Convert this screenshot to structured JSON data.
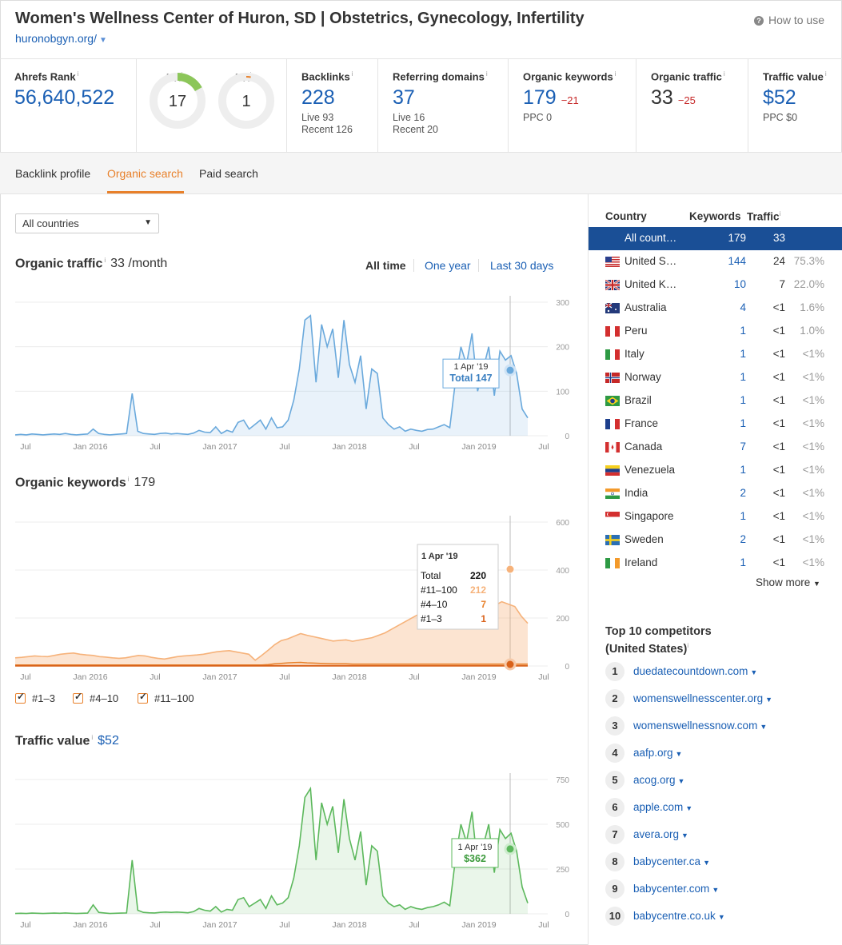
{
  "header": {
    "title": "Women's Wellness Center of Huron, SD | Obstetrics, Gynecology, Infertility",
    "url": "huronobgyn.org/",
    "how_to_use": "How to use"
  },
  "metrics": {
    "ahrefs_rank": {
      "label": "Ahrefs Rank",
      "value": "56,640,522"
    },
    "ur": {
      "label": "UR",
      "value": "17",
      "level": 17
    },
    "dr": {
      "label": "DR",
      "value": "1",
      "level": 1
    },
    "backlinks": {
      "label": "Backlinks",
      "value": "228",
      "live": "Live 93",
      "recent": "Recent 126"
    },
    "referring_domains": {
      "label": "Referring domains",
      "value": "37",
      "live": "Live 16",
      "recent": "Recent 20"
    },
    "organic_keywords": {
      "label": "Organic keywords",
      "value": "179",
      "delta": "−21",
      "ppc": "PPC 0"
    },
    "organic_traffic": {
      "label": "Organic traffic",
      "value": "33",
      "delta": "−25"
    },
    "traffic_value": {
      "label": "Traffic value",
      "value": "$52",
      "ppc": "PPC $0"
    }
  },
  "tabs": [
    "Backlink profile",
    "Organic search",
    "Paid search"
  ],
  "country_select": "All countries",
  "sections": {
    "organic_traffic": {
      "title": "Organic traffic",
      "value": "33 /month"
    },
    "organic_keywords": {
      "title": "Organic keywords",
      "value": "179"
    },
    "traffic_value": {
      "title": "Traffic value",
      "value": "$52"
    }
  },
  "ranges": [
    "All time",
    "One year",
    "Last 30 days"
  ],
  "tooltips": {
    "traffic": {
      "date": "1 Apr '19",
      "label": "Total 147"
    },
    "keywords": {
      "date": "1 Apr '19",
      "rows": [
        [
          "Total",
          "220"
        ],
        [
          "#11–100",
          "212"
        ],
        [
          "#4–10",
          "7"
        ],
        [
          "#1–3",
          "1"
        ]
      ]
    },
    "value": {
      "date": "1 Apr '19",
      "label": "$362"
    }
  },
  "legend": [
    "#1–3",
    "#4–10",
    "#11–100"
  ],
  "colors": {
    "accent": "#e8802a",
    "link": "#1a5fb4",
    "traffic": "#6aa9dc",
    "keywords": "#f6b27a",
    "value": "#5cb85c",
    "delta": "#c62828"
  },
  "chart_data": [
    {
      "type": "line",
      "title": "Organic traffic",
      "x_ticks": [
        "Jul",
        "Jan 2016",
        "Jul",
        "Jan 2017",
        "Jul",
        "Jan 2018",
        "Jul",
        "Jan 2019",
        "Jul"
      ],
      "y_ticks": [
        "300",
        "200",
        "100",
        "0"
      ],
      "ylim": [
        0,
        300
      ],
      "series": [
        {
          "values": [
            2,
            3,
            2,
            4,
            3,
            2,
            3,
            4,
            3,
            5,
            3,
            2,
            3,
            4,
            15,
            5,
            3,
            2,
            3,
            4,
            5,
            95,
            10,
            5,
            4,
            3,
            5,
            6,
            4,
            5,
            4,
            3,
            6,
            12,
            8,
            7,
            20,
            5,
            12,
            8,
            30,
            35,
            15,
            25,
            35,
            15,
            40,
            18,
            20,
            35,
            80,
            150,
            260,
            270,
            120,
            250,
            200,
            240,
            130,
            260,
            160,
            120,
            180,
            60,
            150,
            140,
            40,
            25,
            15,
            20,
            10,
            15,
            12,
            10,
            14,
            15,
            20,
            25,
            18,
            120,
            200,
            160,
            230,
            100,
            150,
            200,
            90,
            190,
            170,
            180,
            140,
            60,
            40
          ]
        }
      ],
      "highlight": {
        "x": "1 Apr '19",
        "y": 147
      }
    },
    {
      "type": "area",
      "title": "Organic keywords",
      "x_ticks": [
        "Jul",
        "Jan 2016",
        "Jul",
        "Jan 2017",
        "Jul",
        "Jan 2018",
        "Jul",
        "Jan 2019",
        "Jul"
      ],
      "y_ticks": [
        "600",
        "400",
        "200",
        "0"
      ],
      "ylim": [
        0,
        600
      ],
      "series": [
        {
          "name": "#11–100",
          "values": [
            30,
            32,
            35,
            38,
            36,
            35,
            40,
            45,
            48,
            50,
            45,
            42,
            40,
            35,
            33,
            30,
            28,
            30,
            35,
            40,
            38,
            32,
            28,
            25,
            30,
            35,
            38,
            40,
            42,
            45,
            50,
            55,
            58,
            60,
            55,
            50,
            45,
            20,
            40,
            60,
            80,
            95,
            100,
            110,
            120,
            115,
            110,
            105,
            100,
            95,
            98,
            100,
            95,
            100,
            105,
            110,
            120,
            130,
            145,
            160,
            175,
            190,
            205,
            212,
            260,
            300,
            350,
            380,
            410,
            430,
            380,
            300,
            240,
            230,
            245,
            260,
            250,
            240,
            200,
            170
          ]
        },
        {
          "name": "#4–10",
          "values": [
            3,
            3,
            3,
            3,
            3,
            3,
            3,
            3,
            3,
            3,
            3,
            3,
            3,
            3,
            3,
            3,
            3,
            3,
            3,
            3,
            3,
            3,
            3,
            3,
            3,
            3,
            3,
            3,
            3,
            3,
            3,
            3,
            3,
            3,
            3,
            3,
            3,
            3,
            3,
            5,
            8,
            10,
            12,
            13,
            14,
            12,
            11,
            10,
            9,
            8,
            8,
            8,
            7,
            7,
            7,
            7,
            7,
            7,
            7,
            7,
            7,
            7,
            7,
            7,
            7,
            7,
            7,
            7,
            7,
            7,
            7,
            7,
            7,
            7,
            7,
            7,
            7,
            7,
            7,
            7
          ]
        },
        {
          "name": "#1–3",
          "values": [
            1,
            1,
            1,
            1,
            1,
            1,
            1,
            1,
            1,
            1,
            1,
            1,
            1,
            1,
            1,
            1,
            1,
            1,
            1,
            1,
            1,
            1,
            1,
            1,
            1,
            1,
            1,
            1,
            1,
            1,
            1,
            1,
            1,
            1,
            1,
            1,
            1,
            1,
            1,
            1,
            1,
            1,
            1,
            1,
            1,
            1,
            1,
            1,
            1,
            1,
            1,
            1,
            1,
            1,
            1,
            1,
            1,
            1,
            1,
            1,
            1,
            1,
            1,
            1,
            1,
            1,
            1,
            1,
            1,
            1,
            1,
            1,
            1,
            1,
            1,
            1,
            1,
            1,
            1,
            1
          ]
        }
      ],
      "highlight": {
        "x": "1 Apr '19",
        "y": 220
      }
    },
    {
      "type": "line",
      "title": "Traffic value",
      "x_ticks": [
        "Jul",
        "Jan 2016",
        "Jul",
        "Jan 2017",
        "Jul",
        "Jan 2018",
        "Jul",
        "Jan 2019",
        "Jul"
      ],
      "y_ticks": [
        "750",
        "500",
        "250",
        "0"
      ],
      "ylim": [
        0,
        750
      ],
      "series": [
        {
          "values": [
            2,
            3,
            2,
            4,
            3,
            2,
            3,
            4,
            3,
            5,
            3,
            2,
            3,
            4,
            50,
            8,
            5,
            2,
            3,
            4,
            5,
            300,
            20,
            8,
            6,
            5,
            8,
            10,
            8,
            10,
            8,
            6,
            12,
            30,
            20,
            15,
            40,
            10,
            25,
            20,
            80,
            90,
            40,
            60,
            80,
            30,
            100,
            50,
            60,
            90,
            200,
            380,
            650,
            700,
            300,
            620,
            500,
            600,
            340,
            640,
            420,
            300,
            460,
            160,
            380,
            350,
            100,
            60,
            40,
            50,
            25,
            40,
            30,
            25,
            35,
            40,
            50,
            65,
            45,
            300,
            500,
            400,
            570,
            260,
            380,
            500,
            230,
            470,
            420,
            450,
            350,
            150,
            60
          ]
        }
      ],
      "highlight": {
        "x": "1 Apr '19",
        "y": 362
      }
    }
  ],
  "countries": {
    "headers": [
      "Country",
      "Keywords",
      "Traffic"
    ],
    "rows": [
      {
        "name": "All count…",
        "flag": "",
        "kw": "179",
        "traffic": "33",
        "pct": "",
        "selected": true
      },
      {
        "name": "United S…",
        "flag": "us",
        "kw": "144",
        "traffic": "24",
        "pct": "75.3%"
      },
      {
        "name": "United K…",
        "flag": "uk",
        "kw": "10",
        "traffic": "7",
        "pct": "22.0%"
      },
      {
        "name": "Australia",
        "flag": "au",
        "kw": "4",
        "traffic": "<1",
        "pct": "1.6%"
      },
      {
        "name": "Peru",
        "flag": "pe",
        "kw": "1",
        "traffic": "<1",
        "pct": "1.0%"
      },
      {
        "name": "Italy",
        "flag": "it",
        "kw": "1",
        "traffic": "<1",
        "pct": "<1%"
      },
      {
        "name": "Norway",
        "flag": "no",
        "kw": "1",
        "traffic": "<1",
        "pct": "<1%"
      },
      {
        "name": "Brazil",
        "flag": "br",
        "kw": "1",
        "traffic": "<1",
        "pct": "<1%"
      },
      {
        "name": "France",
        "flag": "fr",
        "kw": "1",
        "traffic": "<1",
        "pct": "<1%"
      },
      {
        "name": "Canada",
        "flag": "ca",
        "kw": "7",
        "traffic": "<1",
        "pct": "<1%"
      },
      {
        "name": "Venezuela",
        "flag": "ve",
        "kw": "1",
        "traffic": "<1",
        "pct": "<1%"
      },
      {
        "name": "India",
        "flag": "in",
        "kw": "2",
        "traffic": "<1",
        "pct": "<1%"
      },
      {
        "name": "Singapore",
        "flag": "sg",
        "kw": "1",
        "traffic": "<1",
        "pct": "<1%"
      },
      {
        "name": "Sweden",
        "flag": "se",
        "kw": "2",
        "traffic": "<1",
        "pct": "<1%"
      },
      {
        "name": "Ireland",
        "flag": "ie",
        "kw": "1",
        "traffic": "<1",
        "pct": "<1%"
      }
    ],
    "show_more": "Show more"
  },
  "competitors": {
    "title_line1": "Top 10 competitors",
    "title_line2": "(United States)",
    "items": [
      "duedatecountdown.com",
      "womenswellnesscenter.org",
      "womenswellnessnow.com",
      "aafp.org",
      "acog.org",
      "apple.com",
      "avera.org",
      "babycenter.ca",
      "babycenter.com",
      "babycentre.co.uk"
    ]
  }
}
